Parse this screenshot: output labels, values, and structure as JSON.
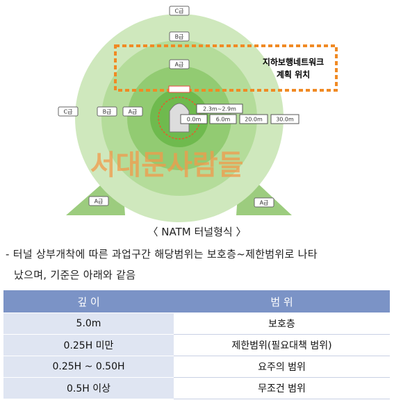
{
  "diagram": {
    "grades": {
      "top_c": "C급",
      "top_b": "B급",
      "top_a": "A급",
      "left_c": "C급",
      "left_b": "B급",
      "left_a": "A급",
      "bottom_left_a": "A급",
      "bottom_right_a": "A급"
    },
    "zone_label": [
      "지하보행네트워크",
      "계획 위치"
    ],
    "dimensions": [
      "2.3m~2.9m",
      "0.0m",
      "6.0m",
      "20.0m",
      "30.0m"
    ],
    "watermark": "서대문사람들"
  },
  "caption": "〈 NATM 터널형식 〉",
  "paragraph": [
    "- 터널 상부개착에 따른 과업구간 해당범위는 보호층~제한범위로 나타",
    "났으며, 기준은 아래와 같음"
  ],
  "table": {
    "header": [
      "깊 이",
      "범 위"
    ],
    "rows": [
      [
        "5.0m",
        "보호층"
      ],
      [
        "0.25H 미만",
        "제한범위(필요대책 범위)"
      ],
      [
        "0.25H ~ 0.50H",
        "요주의 범위"
      ],
      [
        "0.5H 이상",
        "무조건 범위"
      ]
    ]
  }
}
